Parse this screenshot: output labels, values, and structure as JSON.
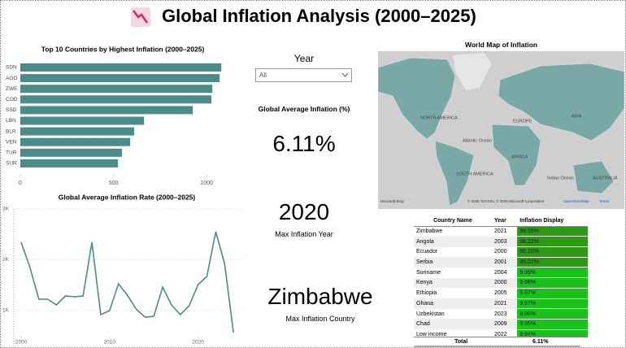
{
  "header": {
    "title": "Global Inflation Analysis (2000–2025)"
  },
  "chart_data": [
    {
      "type": "bar",
      "orientation": "horizontal",
      "title": "Top 10 Countries by Highest Inflation (2000–2025)",
      "categories": [
        "SDN",
        "AGO",
        "ZWE",
        "COD",
        "SSD",
        "LBN",
        "BLR",
        "VEN",
        "TUR",
        "SUR"
      ],
      "values": [
        1079,
        1070,
        1031,
        1026,
        926,
        664,
        611,
        590,
        546,
        524
      ],
      "color": "#4a8c8a",
      "xlim": [
        0,
        1100
      ],
      "xticks": [
        0,
        500,
        1000
      ]
    },
    {
      "type": "line",
      "title": "Global Average Inflation Rate (2000–2025)",
      "x": [
        2000,
        2001,
        2002,
        2003,
        2004,
        2005,
        2006,
        2007,
        2008,
        2009,
        2010,
        2011,
        2012,
        2013,
        2014,
        2015,
        2016,
        2017,
        2018,
        2019,
        2020,
        2021,
        2022,
        2023,
        2024
      ],
      "values": [
        2344,
        1848,
        1224,
        1224,
        1112,
        1288,
        1272,
        1288,
        2344,
        920,
        1000,
        1528,
        1304,
        1032,
        872,
        888,
        1464,
        1112,
        920,
        1096,
        1512,
        1672,
        2552,
        1928,
        568
      ],
      "color": "#4a8c8a",
      "xlim": [
        2000,
        2025
      ],
      "xticks": [
        2000,
        2010,
        2020
      ],
      "ylim": [
        540,
        3000
      ],
      "yticks": [
        {
          "value": 1000,
          "label": "1K"
        },
        {
          "value": 2000,
          "label": "2K"
        },
        {
          "value": 3000,
          "label": "3K"
        }
      ],
      "grid": true
    }
  ],
  "slicer": {
    "label": "Year",
    "selected": "All"
  },
  "cards": [
    {
      "label": "Global Average Inflation (%)",
      "value": "6.11%"
    },
    {
      "value": "2020",
      "label": "Max Inflation Year"
    },
    {
      "value": "Zimbabwe",
      "label": "Max Inflation Country"
    }
  ],
  "map": {
    "title": "World Map of Inflation",
    "labels": [
      "NORTH AMERICA",
      "EUROPE",
      "ASIA",
      "Atlantic Ocean",
      "AFRICA",
      "SOUTH AMERICA",
      "Indian Ocean",
      "AUSTRALIA"
    ],
    "logo": "Microsoft Bing",
    "attribution": "© 2025 TomTom, © 2025 Microsoft Corporation",
    "link": "OpenStreetMap",
    "terms": "Terms"
  },
  "table": {
    "columns": [
      "Country Name",
      "Year",
      "Inflation Display"
    ],
    "rows": [
      [
        "Zimbabwe",
        "2021",
        "98.55%"
      ],
      [
        "Angola",
        "2003",
        "98.22%"
      ],
      [
        "Ecuador",
        "2000",
        "96.10%"
      ],
      [
        "Serbia",
        "2001",
        "95.01%"
      ],
      [
        "Suriname",
        "2004",
        "9.99%"
      ],
      [
        "Kenya",
        "2000",
        "9.98%"
      ],
      [
        "Ethiopia",
        "2005",
        "9.97%"
      ],
      [
        "Ghana",
        "2021",
        "9.97%"
      ],
      [
        "Uzbekistan",
        "2023",
        "9.96%"
      ],
      [
        "Chad",
        "2009",
        "9.95%"
      ],
      [
        "Low income",
        "2022",
        "9.94%"
      ]
    ],
    "total": [
      "Total",
      "6.11%"
    ]
  }
}
